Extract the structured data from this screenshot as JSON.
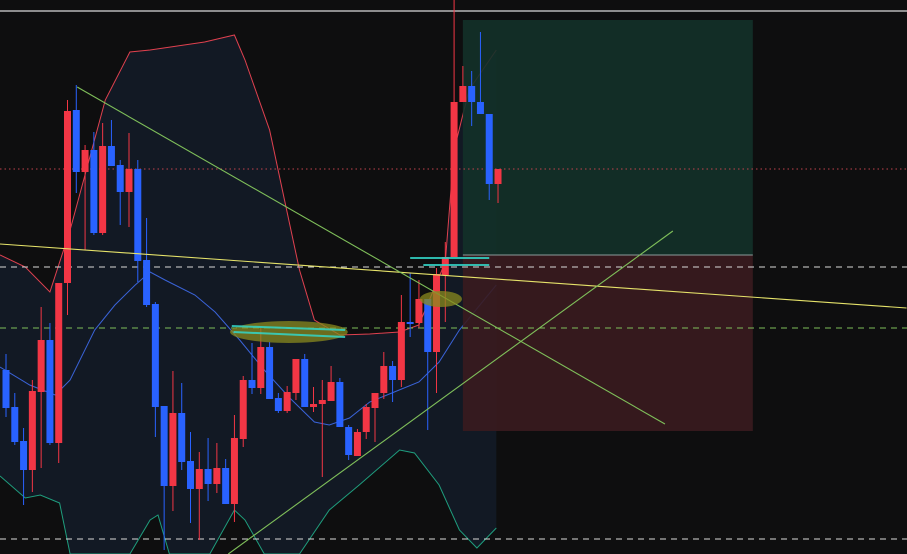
{
  "chart_data": {
    "type": "candlestick",
    "title": "",
    "xlabel": "",
    "ylabel": "",
    "ylim": [
      100.0,
      155.4
    ],
    "grid": false,
    "legend": "none",
    "colors": {
      "background": "#0e0e0f",
      "up": "#f23645",
      "down": "#2962ff",
      "band_fill": "#131a26",
      "upper_band": "#e0414f",
      "middle_band": "#3a63d8",
      "lower_band": "#1f9e7e",
      "target_zone": "#133129",
      "stop_zone": "#3a1b1f",
      "trendline_yellow": "#e6e36a",
      "trendline_green": "#7fbf5a",
      "highlight": "#8a8a1e",
      "highlight_line": "#33d6c8"
    },
    "candles_ohlc": [
      [
        118.4,
        120.0,
        113.7,
        114.6
      ],
      [
        114.7,
        116.1,
        110.9,
        111.2
      ],
      [
        111.3,
        112.6,
        104.9,
        108.4
      ],
      [
        108.4,
        117.4,
        106.2,
        116.3
      ],
      [
        116.2,
        124.7,
        108.6,
        121.4
      ],
      [
        121.4,
        123.1,
        110.9,
        111.1
      ],
      [
        111.1,
        127.1,
        109.1,
        127.1
      ],
      [
        127.1,
        145.4,
        123.9,
        144.3
      ],
      [
        144.4,
        146.9,
        136.1,
        138.2
      ],
      [
        138.2,
        140.9,
        130.4,
        140.4
      ],
      [
        140.4,
        142.2,
        131.9,
        132.1
      ],
      [
        132.1,
        143.1,
        131.9,
        140.8
      ],
      [
        140.8,
        143.4,
        138.8,
        138.8
      ],
      [
        138.9,
        139.4,
        132.9,
        136.2
      ],
      [
        136.2,
        142.1,
        132.7,
        138.5
      ],
      [
        138.5,
        139.4,
        127.2,
        129.3
      ],
      [
        129.4,
        133.6,
        124.7,
        124.9
      ],
      [
        125.0,
        125.2,
        111.7,
        114.7
      ],
      [
        114.8,
        114.8,
        100.4,
        106.8
      ],
      [
        106.8,
        118.3,
        104.3,
        114.1
      ],
      [
        114.1,
        117.1,
        108.4,
        109.2
      ],
      [
        109.3,
        112.2,
        103.1,
        106.5
      ],
      [
        106.5,
        110.2,
        101.4,
        108.5
      ],
      [
        108.5,
        111.6,
        105.3,
        107.0
      ],
      [
        107.0,
        111.1,
        106.1,
        108.6
      ],
      [
        108.6,
        109.5,
        105.0,
        105.0
      ],
      [
        105.0,
        113.9,
        103.2,
        111.6
      ],
      [
        111.5,
        117.8,
        110.7,
        117.4
      ],
      [
        117.4,
        121.1,
        116.0,
        116.6
      ],
      [
        116.6,
        122.6,
        116.0,
        120.7
      ],
      [
        120.7,
        121.2,
        115.5,
        115.5
      ],
      [
        115.6,
        116.1,
        114.1,
        114.3
      ],
      [
        114.3,
        116.8,
        114.1,
        116.2
      ],
      [
        116.1,
        119.5,
        115.4,
        119.5
      ],
      [
        119.5,
        120.0,
        114.7,
        114.7
      ],
      [
        114.7,
        116.7,
        114.2,
        115.0
      ],
      [
        115.0,
        117.4,
        107.7,
        115.4
      ],
      [
        115.3,
        118.8,
        115.3,
        117.2
      ],
      [
        117.2,
        117.6,
        112.7,
        112.7
      ],
      [
        112.7,
        112.9,
        109.4,
        109.9
      ],
      [
        109.8,
        112.5,
        109.8,
        112.2
      ],
      [
        112.2,
        115.0,
        111.5,
        114.7
      ],
      [
        114.6,
        116.1,
        111.2,
        116.1
      ],
      [
        116.1,
        120.2,
        115.5,
        118.8
      ],
      [
        118.8,
        119.3,
        115.2,
        117.4
      ],
      [
        117.4,
        125.9,
        116.7,
        123.2
      ],
      [
        123.2,
        128.1,
        121.7,
        123.0
      ],
      [
        123.1,
        127.4,
        122.6,
        125.5
      ],
      [
        125.5,
        125.5,
        112.4,
        120.2
      ],
      [
        120.2,
        128.6,
        116.1,
        128.0
      ],
      [
        127.9,
        131.2,
        123.2,
        129.7
      ],
      [
        129.7,
        155.4,
        129.7,
        145.2
      ],
      [
        145.2,
        148.8,
        145.2,
        146.8
      ],
      [
        146.8,
        148.3,
        142.8,
        145.2
      ],
      [
        145.2,
        152.2,
        144.0,
        144.0
      ],
      [
        144.0,
        144.0,
        135.4,
        137.0
      ],
      [
        137.0,
        138.5,
        135.1,
        138.5
      ]
    ],
    "bollinger": {
      "upper": [
        [
          -0.7,
          129.9
        ],
        [
          2.2,
          128.7
        ],
        [
          5,
          126.2
        ],
        [
          7.3,
          132.4
        ],
        [
          11.3,
          145.4
        ],
        [
          14.1,
          150.2
        ],
        [
          16.4,
          150.4
        ],
        [
          22.6,
          151.2
        ],
        [
          26,
          151.9
        ],
        [
          27.2,
          149.4
        ],
        [
          30,
          142.4
        ],
        [
          31.7,
          135.4
        ],
        [
          33.4,
          128.4
        ],
        [
          35.1,
          123.4
        ],
        [
          38,
          121.9
        ],
        [
          41.4,
          122.0
        ],
        [
          44.8,
          122.2
        ],
        [
          47,
          122.9
        ],
        [
          50,
          129.2
        ],
        [
          51,
          140.4
        ],
        [
          52.7,
          146.4
        ],
        [
          55.8,
          150.4
        ]
      ],
      "middle": [
        [
          -0.7,
          118.7
        ],
        [
          2.7,
          116.9
        ],
        [
          5.6,
          115.9
        ],
        [
          7.3,
          117.4
        ],
        [
          10.1,
          122.4
        ],
        [
          12.4,
          124.9
        ],
        [
          14.7,
          126.9
        ],
        [
          16.4,
          128.2
        ],
        [
          18.1,
          127.4
        ],
        [
          21.5,
          125.9
        ],
        [
          23.8,
          124.2
        ],
        [
          26.6,
          121.4
        ],
        [
          29.4,
          118.4
        ],
        [
          32.3,
          115.6
        ],
        [
          35.1,
          113.2
        ],
        [
          36.8,
          112.9
        ],
        [
          39.1,
          113.6
        ],
        [
          41.4,
          115.2
        ],
        [
          44.2,
          116.2
        ],
        [
          47,
          117.2
        ],
        [
          49.3,
          119.2
        ],
        [
          51.6,
          122.4
        ],
        [
          55.8,
          126.9
        ]
      ],
      "lower": [
        [
          -0.7,
          107.8
        ],
        [
          2.2,
          105.6
        ],
        [
          3.9,
          105.9
        ],
        [
          6.1,
          105.1
        ],
        [
          7.3,
          99.4
        ],
        [
          10.1,
          93.4
        ],
        [
          14.1,
          95.4
        ],
        [
          16.4,
          103.4
        ],
        [
          17.3,
          103.9
        ],
        [
          18.6,
          100.0
        ],
        [
          23.2,
          95.4
        ],
        [
          26,
          104.4
        ],
        [
          27.2,
          103.4
        ],
        [
          29.4,
          97.4
        ],
        [
          33.4,
          98.4
        ],
        [
          36.8,
          104.4
        ],
        [
          40.2,
          106.9
        ],
        [
          44.8,
          110.4
        ],
        [
          46.5,
          110.1
        ],
        [
          49.3,
          106.9
        ],
        [
          51.6,
          102.4
        ],
        [
          53.6,
          100.6
        ],
        [
          55.8,
          102.6
        ]
      ]
    },
    "horizontal_lines": [
      {
        "price": 154.3,
        "style": "solid",
        "color": "#d9d9d9"
      },
      {
        "price": 138.5,
        "style": "dotted",
        "color": "#c0424c"
      },
      {
        "price": 128.7,
        "style": "dashed",
        "color": "#d9d9d9"
      },
      {
        "price": 122.6,
        "style": "dashed",
        "color": "#7fbf5a"
      },
      {
        "price": 101.5,
        "style": "dashed",
        "color": "#d9d9d9"
      }
    ],
    "trendlines": [
      {
        "from": [
          -0.7,
          131.0
        ],
        "to": [
          102.5,
          124.6
        ],
        "color": "#e6e36a"
      },
      {
        "from": [
          8.1,
          146.7
        ],
        "to": [
          75,
          113.0
        ],
        "color": "#7fbf5a"
      },
      {
        "from": [
          25.3,
          100.0
        ],
        "to": [
          75.9,
          132.3
        ],
        "color": "#7fbf5a"
      }
    ],
    "long_position": {
      "start": 52,
      "end": 85,
      "entry": 129.9,
      "target": 153.4,
      "stop": 112.3
    },
    "highlights": [
      {
        "from": [
          25.5,
          123.2
        ],
        "to": [
          38.9,
          121.2
        ]
      },
      {
        "from": [
          47.1,
          126.2
        ],
        "to": [
          51.9,
          124.8
        ]
      }
    ],
    "highlight_lines": [
      {
        "from": [
          46,
          129.6
        ],
        "to": [
          55,
          129.6
        ]
      },
      {
        "from": [
          47.5,
          128.9
        ],
        "to": [
          55,
          128.9
        ]
      },
      {
        "from": [
          25.7,
          122.8
        ],
        "to": [
          38.6,
          122.4
        ]
      },
      {
        "from": [
          25.9,
          122.2
        ],
        "to": [
          38.6,
          121.7
        ]
      }
    ]
  }
}
